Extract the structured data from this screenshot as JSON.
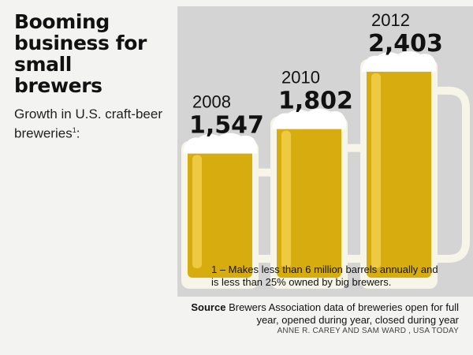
{
  "title_lines": [
    "Booming",
    "business for",
    "small",
    "brewers"
  ],
  "subtitle_text": "Growth in U.S. craft-beer breweries",
  "subtitle_note_mark": "1",
  "subtitle_suffix": ":",
  "footnote": "1 – Makes less than 6 million barrels annually and is less than 25% owned by big brewers.",
  "source_label": "Source",
  "source_text": "Brewers Association data of breweries open for full year, opened during year, closed during year",
  "credit": "ANNE R. CAREY AND SAM WARD , USA TODAY",
  "colors": {
    "beer": "#d6ac0f",
    "beer_light": "#f2d24e",
    "foam": "#ffffff",
    "glass": "#f7f4e8",
    "panel": "#d4d4d4"
  },
  "chart_data": {
    "type": "bar",
    "categories": [
      "2008",
      "2010",
      "2012"
    ],
    "values": [
      1547,
      1802,
      2403
    ],
    "value_labels": [
      "1,547",
      "1,802",
      "2,403"
    ],
    "title": "",
    "xlabel": "",
    "ylabel": ""
  }
}
